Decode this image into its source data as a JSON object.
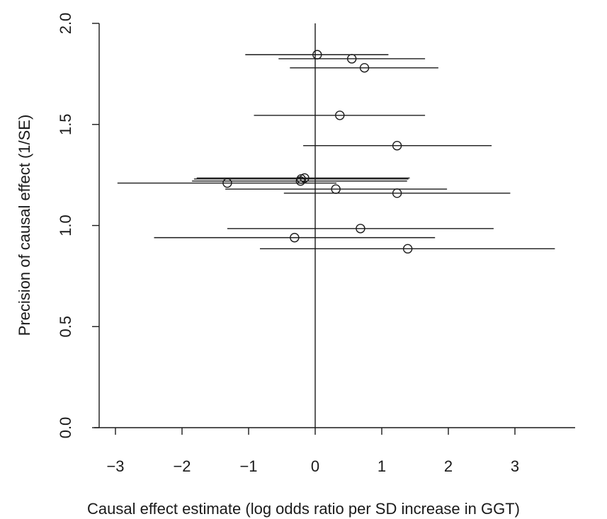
{
  "chart_data": {
    "type": "scatter",
    "title": "",
    "xlabel": "Causal effect estimate (log odds ratio per SD increase in GGT)",
    "ylabel": "Precision of causal effect (1/SE)",
    "xlim": [
      -3.2,
      3.9
    ],
    "ylim": [
      0,
      2.0
    ],
    "xticks": [
      -3,
      -2,
      -1,
      0,
      1,
      2,
      3
    ],
    "xtick_labels": [
      "−3",
      "−2",
      "−1",
      "0",
      "1",
      "2",
      "3"
    ],
    "yticks": [
      0.0,
      0.5,
      1.0,
      1.5,
      2.0
    ],
    "ytick_labels": [
      "0.0",
      "0.5",
      "1.0",
      "1.5",
      "2.0"
    ],
    "vertical_reference_line_x": 0,
    "grid": false,
    "marker": "open-circle",
    "points": [
      {
        "x": 0.03,
        "y": 1.845,
        "ci": [
          -1.05,
          1.1
        ]
      },
      {
        "x": 0.55,
        "y": 1.825,
        "ci": [
          -0.55,
          1.65
        ]
      },
      {
        "x": 0.74,
        "y": 1.78,
        "ci": [
          -0.38,
          1.85
        ]
      },
      {
        "x": 0.37,
        "y": 1.545,
        "ci": [
          -0.92,
          1.65
        ]
      },
      {
        "x": 1.23,
        "y": 1.395,
        "ci": [
          -0.18,
          2.65
        ]
      },
      {
        "x": -0.16,
        "y": 1.235,
        "ci": [
          -1.78,
          1.42
        ]
      },
      {
        "x": -0.21,
        "y": 1.23,
        "ci": [
          -1.82,
          1.4
        ]
      },
      {
        "x": -0.22,
        "y": 1.22,
        "ci": [
          -1.85,
          1.38
        ]
      },
      {
        "x": -1.32,
        "y": 1.21,
        "ci": [
          -2.97,
          0.32
        ]
      },
      {
        "x": 0.31,
        "y": 1.18,
        "ci": [
          -1.35,
          1.98
        ]
      },
      {
        "x": 1.23,
        "y": 1.16,
        "ci": [
          -0.47,
          2.93
        ]
      },
      {
        "x": 0.68,
        "y": 0.985,
        "ci": [
          -1.32,
          2.68
        ]
      },
      {
        "x": -0.31,
        "y": 0.94,
        "ci": [
          -2.42,
          1.8
        ]
      },
      {
        "x": 1.39,
        "y": 0.885,
        "ci": [
          -0.83,
          3.6
        ]
      }
    ]
  }
}
